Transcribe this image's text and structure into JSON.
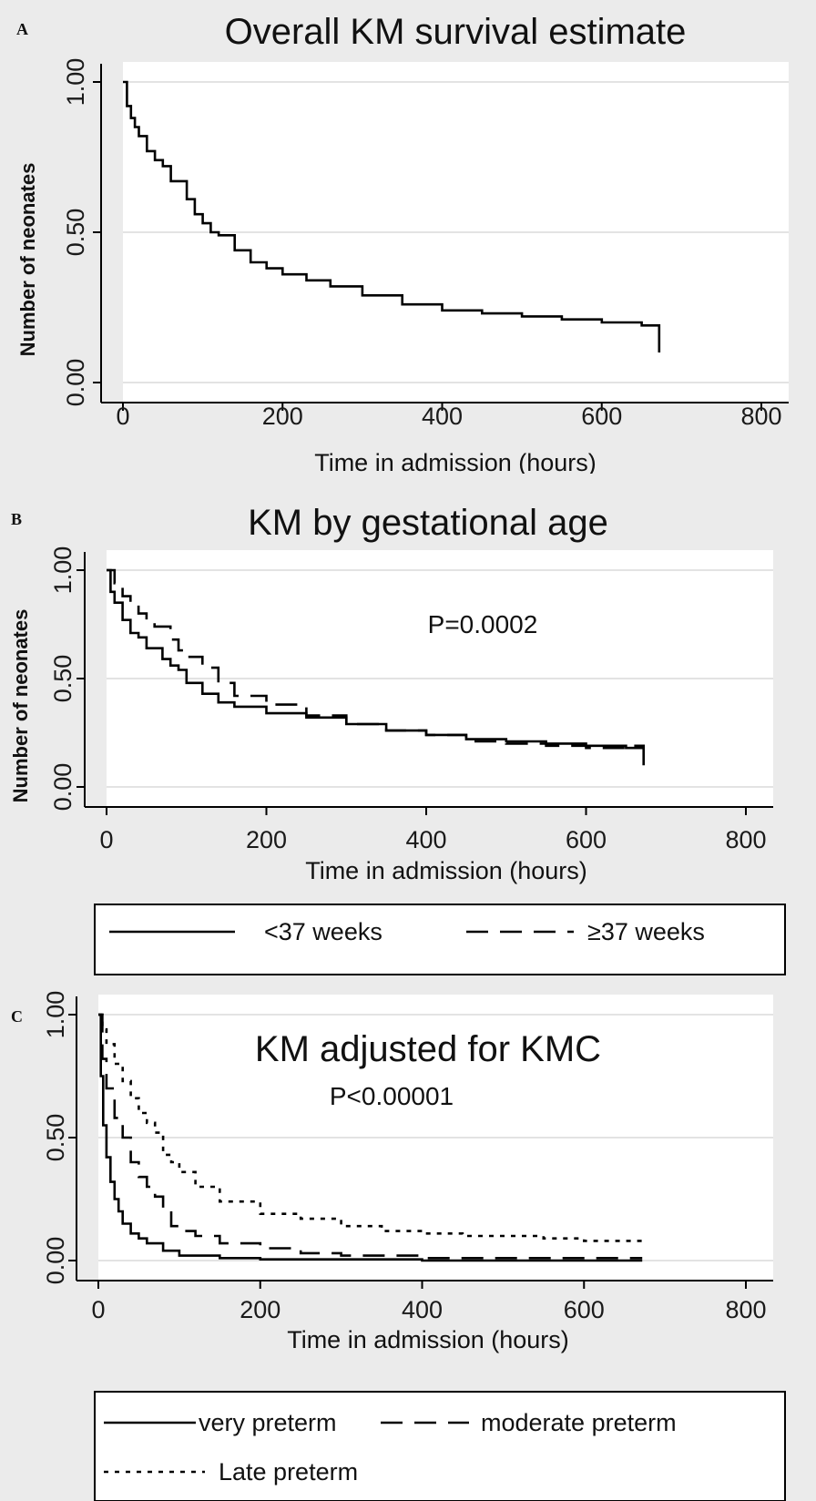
{
  "chart_data": [
    {
      "panel_letter": "A",
      "type": "line",
      "title": "Overall KM survival estimate",
      "xlabel": "Time in admission (hours)",
      "ylabel": "Number of neonates",
      "xlim": [
        0,
        800
      ],
      "ylim": [
        0,
        1
      ],
      "x_ticks": [
        0,
        200,
        400,
        600,
        800
      ],
      "x_tick_labels": [
        "0",
        "200",
        "400",
        "600",
        "800"
      ],
      "y_ticks": [
        0,
        0.5,
        1
      ],
      "y_tick_labels": [
        "0.00",
        "0.50",
        "1.00"
      ],
      "grid": true,
      "series": [
        {
          "line_style": "solid",
          "x": [
            0,
            5,
            10,
            15,
            20,
            30,
            40,
            50,
            60,
            70,
            80,
            90,
            100,
            110,
            120,
            140,
            160,
            180,
            200,
            230,
            260,
            300,
            350,
            400,
            450,
            500,
            550,
            600,
            650,
            672,
            672
          ],
          "y": [
            1.0,
            0.92,
            0.88,
            0.85,
            0.82,
            0.77,
            0.74,
            0.72,
            0.67,
            0.67,
            0.61,
            0.56,
            0.53,
            0.5,
            0.49,
            0.44,
            0.4,
            0.38,
            0.36,
            0.34,
            0.32,
            0.29,
            0.26,
            0.24,
            0.23,
            0.22,
            0.21,
            0.2,
            0.19,
            0.19,
            0.1
          ]
        }
      ]
    },
    {
      "panel_letter": "B",
      "type": "line",
      "title": "KM by gestational age",
      "xlabel": "Time in admission (hours)",
      "ylabel": "Number of neonates",
      "xlim": [
        0,
        800
      ],
      "ylim": [
        0,
        1
      ],
      "x_ticks": [
        0,
        200,
        400,
        600,
        800
      ],
      "x_tick_labels": [
        "0",
        "200",
        "400",
        "600",
        "800"
      ],
      "y_ticks": [
        0,
        0.5,
        1
      ],
      "y_tick_labels": [
        "0.00",
        "0.50",
        "1.00"
      ],
      "grid": true,
      "annotation": "P=0.0002",
      "legend": {
        "placement": "bottom",
        "entries": [
          "<37 weeks",
          "≥37 weeks"
        ]
      },
      "series": [
        {
          "name": "<37 weeks",
          "line_style": "solid",
          "x": [
            0,
            5,
            10,
            20,
            30,
            40,
            50,
            60,
            70,
            80,
            90,
            100,
            120,
            140,
            160,
            200,
            250,
            300,
            350,
            400,
            450,
            500,
            550,
            600,
            650,
            672,
            672
          ],
          "y": [
            1.0,
            0.9,
            0.85,
            0.77,
            0.71,
            0.69,
            0.64,
            0.64,
            0.59,
            0.56,
            0.54,
            0.48,
            0.43,
            0.39,
            0.37,
            0.34,
            0.32,
            0.29,
            0.26,
            0.24,
            0.22,
            0.21,
            0.2,
            0.19,
            0.18,
            0.18,
            0.1
          ]
        },
        {
          "name": "≥37 weeks",
          "line_style": "dashed",
          "x": [
            0,
            10,
            20,
            30,
            40,
            50,
            60,
            70,
            80,
            90,
            100,
            120,
            140,
            160,
            200,
            250,
            300,
            350,
            400,
            450,
            500,
            550,
            600,
            650,
            672
          ],
          "y": [
            1.0,
            0.94,
            0.88,
            0.84,
            0.8,
            0.77,
            0.74,
            0.74,
            0.68,
            0.63,
            0.6,
            0.55,
            0.48,
            0.42,
            0.38,
            0.33,
            0.29,
            0.26,
            0.24,
            0.21,
            0.2,
            0.19,
            0.18,
            0.19,
            0.18
          ]
        }
      ]
    },
    {
      "panel_letter": "C",
      "type": "line",
      "title": "KM adjusted for KMC",
      "xlabel": "Time in admission (hours)",
      "ylabel": "",
      "xlim": [
        0,
        800
      ],
      "ylim": [
        0,
        1
      ],
      "x_ticks": [
        0,
        200,
        400,
        600,
        800
      ],
      "x_tick_labels": [
        "0",
        "200",
        "400",
        "600",
        "800"
      ],
      "y_ticks": [
        0,
        0.5,
        1
      ],
      "y_tick_labels": [
        "0.00",
        "0.50",
        "1.00"
      ],
      "grid": true,
      "annotation": "P<0.00001",
      "legend": {
        "placement": "bottom",
        "entries": [
          "very preterm",
          "moderate preterm",
          "Late preterm"
        ]
      },
      "series": [
        {
          "name": "very preterm",
          "line_style": "solid",
          "x": [
            0,
            3,
            6,
            10,
            15,
            20,
            25,
            30,
            40,
            50,
            60,
            80,
            100,
            150,
            200,
            400,
            600,
            672
          ],
          "y": [
            1.0,
            0.75,
            0.55,
            0.42,
            0.32,
            0.25,
            0.2,
            0.15,
            0.11,
            0.09,
            0.07,
            0.04,
            0.02,
            0.01,
            0.005,
            0.0,
            0.0,
            0.0
          ]
        },
        {
          "name": "moderate preterm",
          "line_style": "dashed",
          "x": [
            0,
            5,
            10,
            20,
            30,
            40,
            50,
            60,
            70,
            80,
            90,
            100,
            120,
            150,
            200,
            250,
            300,
            400,
            500,
            600,
            672
          ],
          "y": [
            1.0,
            0.82,
            0.7,
            0.58,
            0.5,
            0.4,
            0.34,
            0.3,
            0.26,
            0.2,
            0.14,
            0.12,
            0.1,
            0.07,
            0.05,
            0.03,
            0.02,
            0.01,
            0.01,
            0.01,
            0.01
          ]
        },
        {
          "name": "Late preterm",
          "line_style": "dotted",
          "x": [
            0,
            5,
            10,
            20,
            30,
            40,
            50,
            60,
            70,
            80,
            90,
            100,
            120,
            150,
            200,
            250,
            300,
            350,
            400,
            450,
            500,
            550,
            600,
            672
          ],
          "y": [
            1.0,
            0.94,
            0.88,
            0.8,
            0.73,
            0.66,
            0.6,
            0.56,
            0.52,
            0.43,
            0.4,
            0.36,
            0.3,
            0.24,
            0.19,
            0.17,
            0.14,
            0.12,
            0.11,
            0.1,
            0.1,
            0.09,
            0.08,
            0.07
          ]
        }
      ]
    }
  ]
}
